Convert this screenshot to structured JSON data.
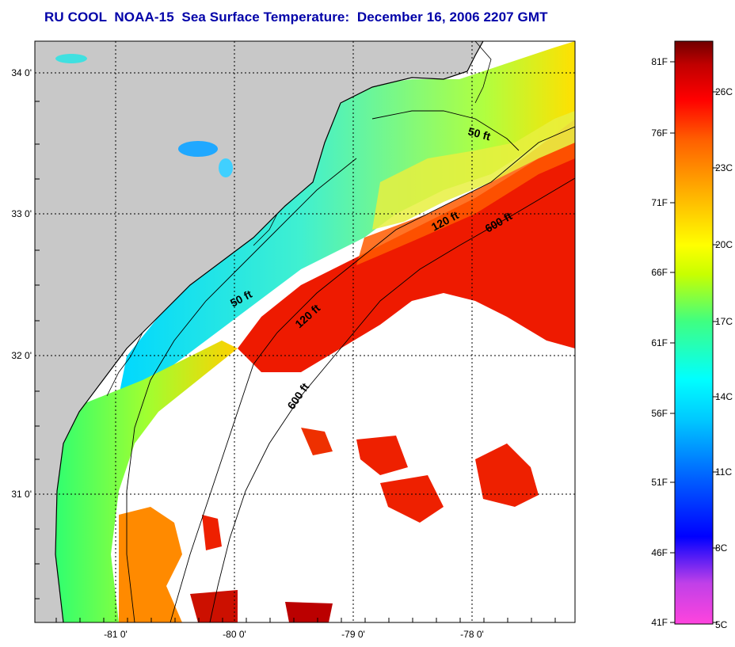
{
  "title": "RU COOL  NOAA-15  Sea Surface Temperature:  December 16, 2006 2207 GMT",
  "map": {
    "lon_ticks": [
      "-81 0'",
      "-80 0'",
      "-79 0'",
      "-78 0'"
    ],
    "lat_ticks": [
      "34 0'",
      "33 0'",
      "32 0'",
      "31 0'"
    ],
    "isobaths": [
      {
        "label": "50 ft"
      },
      {
        "label": "120 ft"
      },
      {
        "label": "600 ft"
      },
      {
        "label": "50 ft"
      },
      {
        "label": "120 ft"
      },
      {
        "label": "600 ft"
      }
    ],
    "colors": {
      "land": "#c8c8c8",
      "cloud": "#ffffff",
      "coast": "#000000"
    }
  },
  "colorbar": {
    "fahrenheit_labels": [
      "81F",
      "76F",
      "71F",
      "66F",
      "61F",
      "56F",
      "51F",
      "46F",
      "41F"
    ],
    "celsius_labels": [
      "26C",
      "23C",
      "20C",
      "17C",
      "14C",
      "11C",
      "8C",
      "5C"
    ],
    "stops": [
      "#ff44dd",
      "#a040e0",
      "#0000ff",
      "#0060ff",
      "#00c8ff",
      "#00ffff",
      "#40ff80",
      "#c8ff00",
      "#ffff00",
      "#ffb000",
      "#ff6000",
      "#ff0000",
      "#c00000",
      "#700000"
    ]
  }
}
